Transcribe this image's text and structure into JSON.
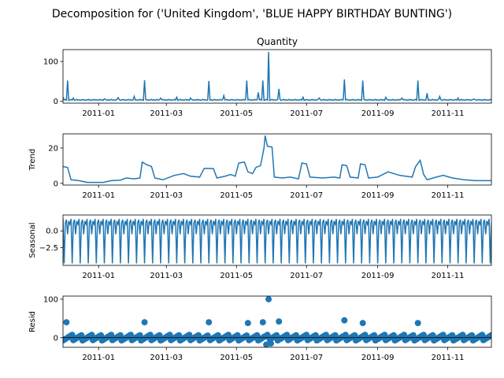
{
  "figure": {
    "suptitle": "Decomposition for ('United Kingdom', 'BLUE HAPPY BIRTHDAY BUNTING')"
  },
  "colors": {
    "series": "#1f77b4",
    "axis": "#000000",
    "background": "#ffffff"
  },
  "chart_data": [
    {
      "type": "line",
      "title": "Quantity",
      "xlabel": "",
      "ylabel": "",
      "xlim": [
        "2010-12-01",
        "2011-12-09"
      ],
      "ylim": [
        -5,
        130
      ],
      "yticks": [
        0,
        100
      ],
      "ytick_labels": [
        "0",
        "100"
      ],
      "xticks": [
        "2011-01-01",
        "2011-03-01",
        "2011-05-01",
        "2011-07-01",
        "2011-09-01",
        "2011-11-01"
      ],
      "xtick_labels": [
        "2011-01",
        "2011-03",
        "2011-05",
        "2011-07",
        "2011-09",
        "2011-11"
      ],
      "baseline": 2,
      "spikes": [
        {
          "date": "2010-12-01",
          "value": 10
        },
        {
          "date": "2010-12-05",
          "value": 52
        },
        {
          "date": "2010-12-10",
          "value": 8
        },
        {
          "date": "2011-01-06",
          "value": 6
        },
        {
          "date": "2011-01-18",
          "value": 9
        },
        {
          "date": "2011-02-01",
          "value": 12
        },
        {
          "date": "2011-02-10",
          "value": 53
        },
        {
          "date": "2011-02-24",
          "value": 8
        },
        {
          "date": "2011-03-10",
          "value": 10
        },
        {
          "date": "2011-03-22",
          "value": 8
        },
        {
          "date": "2011-04-07",
          "value": 51
        },
        {
          "date": "2011-04-20",
          "value": 14
        },
        {
          "date": "2011-05-10",
          "value": 52
        },
        {
          "date": "2011-05-20",
          "value": 22
        },
        {
          "date": "2011-05-24",
          "value": 52
        },
        {
          "date": "2011-05-29",
          "value": 124
        },
        {
          "date": "2011-06-07",
          "value": 31
        },
        {
          "date": "2011-06-28",
          "value": 10
        },
        {
          "date": "2011-07-12",
          "value": 8
        },
        {
          "date": "2011-08-03",
          "value": 55
        },
        {
          "date": "2011-08-19",
          "value": 52
        },
        {
          "date": "2011-09-08",
          "value": 10
        },
        {
          "date": "2011-09-22",
          "value": 8
        },
        {
          "date": "2011-10-06",
          "value": 52
        },
        {
          "date": "2011-10-14",
          "value": 20
        },
        {
          "date": "2011-10-25",
          "value": 12
        },
        {
          "date": "2011-11-10",
          "value": 8
        },
        {
          "date": "2011-11-24",
          "value": 5
        }
      ]
    },
    {
      "type": "line",
      "title": "",
      "xlabel": "",
      "ylabel": "Trend",
      "xlim": [
        "2010-12-01",
        "2011-12-09"
      ],
      "ylim": [
        -1,
        28
      ],
      "yticks": [
        0,
        20
      ],
      "ytick_labels": [
        "0",
        "20"
      ],
      "xticks": [
        "2011-01-01",
        "2011-03-01",
        "2011-05-01",
        "2011-07-01",
        "2011-09-01",
        "2011-11-01"
      ],
      "xtick_labels": [
        "2011-01",
        "2011-03",
        "2011-05",
        "2011-07",
        "2011-09",
        "2011-11"
      ],
      "points": [
        {
          "date": "2010-12-01",
          "value": 9.5
        },
        {
          "date": "2010-12-05",
          "value": 9.0
        },
        {
          "date": "2010-12-08",
          "value": 2.0
        },
        {
          "date": "2010-12-15",
          "value": 1.5
        },
        {
          "date": "2010-12-22",
          "value": 0.5
        },
        {
          "date": "2011-01-05",
          "value": 0.5
        },
        {
          "date": "2011-01-12",
          "value": 1.5
        },
        {
          "date": "2011-01-20",
          "value": 1.8
        },
        {
          "date": "2011-01-25",
          "value": 3.0
        },
        {
          "date": "2011-02-01",
          "value": 2.5
        },
        {
          "date": "2011-02-06",
          "value": 3.0
        },
        {
          "date": "2011-02-08",
          "value": 12.0
        },
        {
          "date": "2011-02-12",
          "value": 10.5
        },
        {
          "date": "2011-02-16",
          "value": 9.5
        },
        {
          "date": "2011-02-19",
          "value": 3.0
        },
        {
          "date": "2011-02-26",
          "value": 2.0
        },
        {
          "date": "2011-03-08",
          "value": 4.5
        },
        {
          "date": "2011-03-16",
          "value": 5.5
        },
        {
          "date": "2011-03-22",
          "value": 4.0
        },
        {
          "date": "2011-03-30",
          "value": 3.5
        },
        {
          "date": "2011-04-03",
          "value": 8.5
        },
        {
          "date": "2011-04-11",
          "value": 8.3
        },
        {
          "date": "2011-04-14",
          "value": 3.0
        },
        {
          "date": "2011-04-21",
          "value": 4.0
        },
        {
          "date": "2011-04-26",
          "value": 5.0
        },
        {
          "date": "2011-04-30",
          "value": 4.0
        },
        {
          "date": "2011-05-03",
          "value": 11.5
        },
        {
          "date": "2011-05-08",
          "value": 12.0
        },
        {
          "date": "2011-05-11",
          "value": 6.5
        },
        {
          "date": "2011-05-15",
          "value": 5.5
        },
        {
          "date": "2011-05-18",
          "value": 9.0
        },
        {
          "date": "2011-05-22",
          "value": 10.0
        },
        {
          "date": "2011-05-25",
          "value": 20.0
        },
        {
          "date": "2011-05-26",
          "value": 27.0
        },
        {
          "date": "2011-05-28",
          "value": 21.0
        },
        {
          "date": "2011-06-01",
          "value": 20.5
        },
        {
          "date": "2011-06-03",
          "value": 3.5
        },
        {
          "date": "2011-06-10",
          "value": 3.0
        },
        {
          "date": "2011-06-17",
          "value": 3.5
        },
        {
          "date": "2011-06-24",
          "value": 2.5
        },
        {
          "date": "2011-06-27",
          "value": 11.5
        },
        {
          "date": "2011-07-01",
          "value": 11.0
        },
        {
          "date": "2011-07-04",
          "value": 3.5
        },
        {
          "date": "2011-07-15",
          "value": 3.0
        },
        {
          "date": "2011-07-25",
          "value": 3.5
        },
        {
          "date": "2011-07-30",
          "value": 3.0
        },
        {
          "date": "2011-08-01",
          "value": 10.5
        },
        {
          "date": "2011-08-05",
          "value": 10.0
        },
        {
          "date": "2011-08-08",
          "value": 3.5
        },
        {
          "date": "2011-08-15",
          "value": 3.0
        },
        {
          "date": "2011-08-17",
          "value": 11.0
        },
        {
          "date": "2011-08-21",
          "value": 10.5
        },
        {
          "date": "2011-08-24",
          "value": 3.0
        },
        {
          "date": "2011-09-01",
          "value": 3.5
        },
        {
          "date": "2011-09-10",
          "value": 6.5
        },
        {
          "date": "2011-09-20",
          "value": 4.5
        },
        {
          "date": "2011-10-01",
          "value": 3.5
        },
        {
          "date": "2011-10-04",
          "value": 9.5
        },
        {
          "date": "2011-10-08",
          "value": 13.0
        },
        {
          "date": "2011-10-11",
          "value": 5.0
        },
        {
          "date": "2011-10-14",
          "value": 2.0
        },
        {
          "date": "2011-10-22",
          "value": 3.5
        },
        {
          "date": "2011-10-28",
          "value": 4.5
        },
        {
          "date": "2011-11-05",
          "value": 3.0
        },
        {
          "date": "2011-11-15",
          "value": 2.0
        },
        {
          "date": "2011-11-25",
          "value": 1.5
        },
        {
          "date": "2011-12-09",
          "value": 1.5
        }
      ]
    },
    {
      "type": "line",
      "title": "",
      "xlabel": "",
      "ylabel": "Seasonal",
      "xlim": [
        "2010-12-01",
        "2011-12-09"
      ],
      "ylim": [
        -5.2,
        2.4
      ],
      "yticks": [
        0,
        -2.5
      ],
      "ytick_labels": [
        "0.0",
        "−2.5"
      ],
      "xticks": [
        "2011-01-01",
        "2011-03-01",
        "2011-05-01",
        "2011-07-01",
        "2011-09-01",
        "2011-11-01"
      ],
      "xtick_labels": [
        "2011-01",
        "2011-03",
        "2011-05",
        "2011-07",
        "2011-09",
        "2011-11"
      ],
      "period_days": 7,
      "weekly_pattern": [
        1.8,
        -4.9,
        1.2,
        1.7,
        -0.5,
        1.5,
        1.0
      ]
    },
    {
      "type": "scatter",
      "title": "",
      "xlabel": "",
      "ylabel": "Resid",
      "xlim": [
        "2010-12-01",
        "2011-12-09"
      ],
      "ylim": [
        -25,
        108
      ],
      "yticks": [
        0,
        100
      ],
      "ytick_labels": [
        "0",
        "100"
      ],
      "xticks": [
        "2011-01-01",
        "2011-03-01",
        "2011-05-01",
        "2011-07-01",
        "2011-09-01",
        "2011-11-01"
      ],
      "xtick_labels": [
        "2011-01",
        "2011-03",
        "2011-05",
        "2011-07",
        "2011-09",
        "2011-11"
      ],
      "outliers": [
        {
          "date": "2010-12-04",
          "value": 40
        },
        {
          "date": "2011-02-10",
          "value": 40
        },
        {
          "date": "2011-04-07",
          "value": 40
        },
        {
          "date": "2011-05-11",
          "value": 38
        },
        {
          "date": "2011-05-24",
          "value": 40
        },
        {
          "date": "2011-05-29",
          "value": 100
        },
        {
          "date": "2011-06-07",
          "value": 42
        },
        {
          "date": "2011-08-03",
          "value": 45
        },
        {
          "date": "2011-08-19",
          "value": 38
        },
        {
          "date": "2011-10-06",
          "value": 38
        },
        {
          "date": "2011-05-27",
          "value": -18
        },
        {
          "date": "2011-05-31",
          "value": -15
        }
      ]
    }
  ]
}
